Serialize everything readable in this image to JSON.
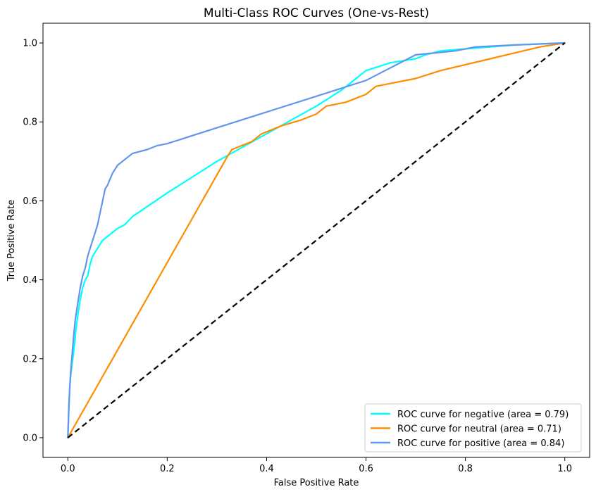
{
  "chart_data": {
    "type": "line",
    "title": "Multi-Class ROC Curves (One-vs-Rest)",
    "xlabel": "False Positive Rate",
    "ylabel": "True Positive Rate",
    "xlim": [
      -0.05,
      1.05
    ],
    "ylim": [
      -0.05,
      1.05
    ],
    "xticks": [
      "0.0",
      "0.2",
      "0.4",
      "0.6",
      "0.8",
      "1.0"
    ],
    "yticks": [
      "0.0",
      "0.2",
      "0.4",
      "0.6",
      "0.8",
      "1.0"
    ],
    "grid": false,
    "legend_position": "lower right",
    "series": [
      {
        "name": "ROC curve for negative (area = 0.79)",
        "color": "#00FFFF",
        "x": [
          0.0,
          0.002,
          0.004,
          0.006,
          0.008,
          0.01,
          0.013,
          0.016,
          0.02,
          0.025,
          0.03,
          0.035,
          0.04,
          0.045,
          0.05,
          0.055,
          0.06,
          0.065,
          0.07,
          0.08,
          0.09,
          0.1,
          0.115,
          0.13,
          0.2,
          0.3,
          0.4,
          0.5,
          0.55,
          0.6,
          0.65,
          0.7,
          0.72,
          0.75,
          0.8,
          0.9,
          1.0
        ],
        "y": [
          0.0,
          0.07,
          0.13,
          0.16,
          0.18,
          0.2,
          0.23,
          0.27,
          0.31,
          0.35,
          0.38,
          0.4,
          0.41,
          0.44,
          0.46,
          0.47,
          0.48,
          0.49,
          0.5,
          0.51,
          0.52,
          0.53,
          0.54,
          0.56,
          0.62,
          0.7,
          0.77,
          0.84,
          0.88,
          0.93,
          0.95,
          0.96,
          0.97,
          0.98,
          0.985,
          0.995,
          1.0
        ]
      },
      {
        "name": "ROC curve for neutral (area = 0.71)",
        "color": "#FF8C00",
        "x": [
          0.0,
          0.32,
          0.33,
          0.35,
          0.37,
          0.39,
          0.4,
          0.43,
          0.47,
          0.5,
          0.52,
          0.56,
          0.6,
          0.62,
          0.66,
          0.7,
          0.75,
          0.8,
          0.85,
          0.9,
          0.95,
          1.0
        ],
        "y": [
          0.0,
          0.71,
          0.73,
          0.74,
          0.75,
          0.77,
          0.775,
          0.79,
          0.805,
          0.82,
          0.84,
          0.85,
          0.87,
          0.89,
          0.9,
          0.91,
          0.93,
          0.945,
          0.96,
          0.975,
          0.99,
          1.0
        ]
      },
      {
        "name": "ROC curve for positive (area = 0.84)",
        "color": "#6495ED",
        "x": [
          0.0,
          0.002,
          0.004,
          0.006,
          0.008,
          0.01,
          0.012,
          0.015,
          0.02,
          0.025,
          0.03,
          0.035,
          0.04,
          0.045,
          0.05,
          0.055,
          0.06,
          0.065,
          0.07,
          0.075,
          0.08,
          0.085,
          0.09,
          0.1,
          0.11,
          0.12,
          0.13,
          0.16,
          0.18,
          0.2,
          0.3,
          0.4,
          0.5,
          0.6,
          0.7,
          0.78,
          0.82,
          0.9,
          1.0
        ],
        "y": [
          0.0,
          0.08,
          0.13,
          0.17,
          0.2,
          0.23,
          0.26,
          0.3,
          0.34,
          0.38,
          0.41,
          0.43,
          0.46,
          0.48,
          0.5,
          0.52,
          0.54,
          0.57,
          0.6,
          0.63,
          0.64,
          0.655,
          0.67,
          0.69,
          0.7,
          0.71,
          0.72,
          0.73,
          0.74,
          0.745,
          0.785,
          0.825,
          0.865,
          0.905,
          0.97,
          0.98,
          0.99,
          0.995,
          1.0
        ]
      }
    ],
    "reference_line": {
      "x": [
        0.0,
        1.0
      ],
      "y": [
        0.0,
        1.0
      ],
      "color": "#000000",
      "dashed": true
    }
  }
}
